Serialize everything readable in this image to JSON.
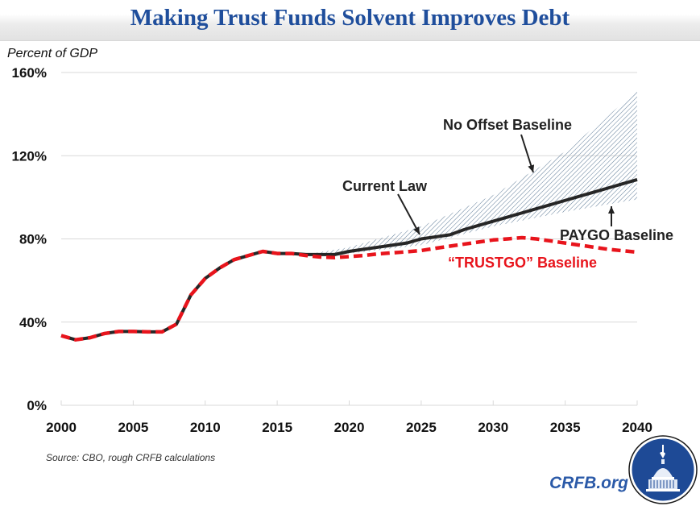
{
  "header": {
    "title": "Making Trust Funds Solvent Improves Debt"
  },
  "footer": {
    "source": "Source: CBO, rough CRFB calculations",
    "brand": "CRFB.org",
    "logo_icon": "capitol-dome-logo-icon"
  },
  "colors": {
    "title": "#1f4e9c",
    "current_law": "#262626",
    "trustgo": "#e8141c",
    "band_hatch": "#4a6b8a",
    "brand": "#2b5aa8",
    "logo_bg": "#1e4a96"
  },
  "chart_data": {
    "type": "line",
    "title": "Making Trust Funds Solvent Improves Debt",
    "ylabel": "Percent of GDP",
    "xlabel": "",
    "xlim": [
      2000,
      2040
    ],
    "ylim": [
      0,
      160
    ],
    "x_ticks": [
      "2000",
      "2005",
      "2010",
      "2015",
      "2020",
      "2025",
      "2030",
      "2035",
      "2040"
    ],
    "y_ticks": [
      "0%",
      "40%",
      "80%",
      "120%",
      "160%"
    ],
    "y_tick_values": [
      0,
      40,
      80,
      120,
      160
    ],
    "grid": "horizontal",
    "series": [
      {
        "name": "Current Law",
        "style": "solid",
        "x": [
          2000,
          2001,
          2002,
          2003,
          2004,
          2005,
          2006,
          2007,
          2008,
          2009,
          2010,
          2011,
          2012,
          2013,
          2014,
          2015,
          2016,
          2017,
          2018,
          2019,
          2020,
          2021,
          2022,
          2023,
          2024,
          2025,
          2026,
          2027,
          2028,
          2029,
          2030,
          2031,
          2032,
          2033,
          2034,
          2035,
          2036,
          2037,
          2038,
          2039,
          2040
        ],
        "values": [
          33.5,
          31.5,
          32.5,
          34.5,
          35.5,
          35.5,
          35.3,
          35.3,
          39,
          53,
          61,
          66,
          70,
          72,
          74,
          73,
          73,
          72.5,
          72.5,
          72.5,
          74,
          75,
          76,
          77,
          78,
          80,
          81,
          82,
          84.5,
          86.5,
          88.5,
          90.5,
          92.5,
          94.5,
          96.5,
          98.5,
          100.5,
          102.5,
          104.5,
          106.5,
          108.5
        ]
      },
      {
        "name": "“TRUSTGO” Baseline",
        "style": "dashed",
        "x": [
          2000,
          2001,
          2002,
          2003,
          2004,
          2005,
          2006,
          2007,
          2008,
          2009,
          2010,
          2011,
          2012,
          2013,
          2014,
          2015,
          2016,
          2017,
          2018,
          2019,
          2020,
          2021,
          2022,
          2023,
          2024,
          2025,
          2026,
          2027,
          2028,
          2029,
          2030,
          2031,
          2032,
          2033,
          2034,
          2035,
          2036,
          2037,
          2038,
          2039,
          2040
        ],
        "values": [
          33.5,
          31.5,
          32.5,
          34.5,
          35.5,
          35.5,
          35.3,
          35.3,
          39,
          53,
          61,
          66,
          70,
          72,
          74,
          73,
          73,
          72,
          71.3,
          71,
          71.5,
          72,
          72.8,
          73.3,
          73.8,
          74.4,
          75.5,
          76.5,
          77.5,
          78.5,
          79.5,
          80,
          80.6,
          80,
          79,
          78,
          77,
          76,
          75,
          74.3,
          73.6
        ]
      }
    ],
    "band": {
      "name": "No Offset / PAYGO range",
      "x": [
        2017,
        2020,
        2025,
        2030,
        2035,
        2040
      ],
      "upper": [
        72.5,
        76,
        86,
        101,
        122,
        151
      ],
      "lower": [
        72.5,
        73,
        77,
        86,
        93,
        99
      ]
    },
    "annotations": [
      {
        "text": "No Offset Baseline",
        "points_to": "band upper edge",
        "x": 2033,
        "y": 113
      },
      {
        "text": "Current Law",
        "points_to": "Current Law line",
        "x": 2024.5,
        "y": 80
      },
      {
        "text": "PAYGO Baseline",
        "points_to": "band lower edge",
        "x": 2038,
        "y": 98
      },
      {
        "text": "“TRUSTGO” Baseline",
        "points_to": "TRUSTGO line",
        "x": 2030,
        "y": 69
      }
    ]
  }
}
